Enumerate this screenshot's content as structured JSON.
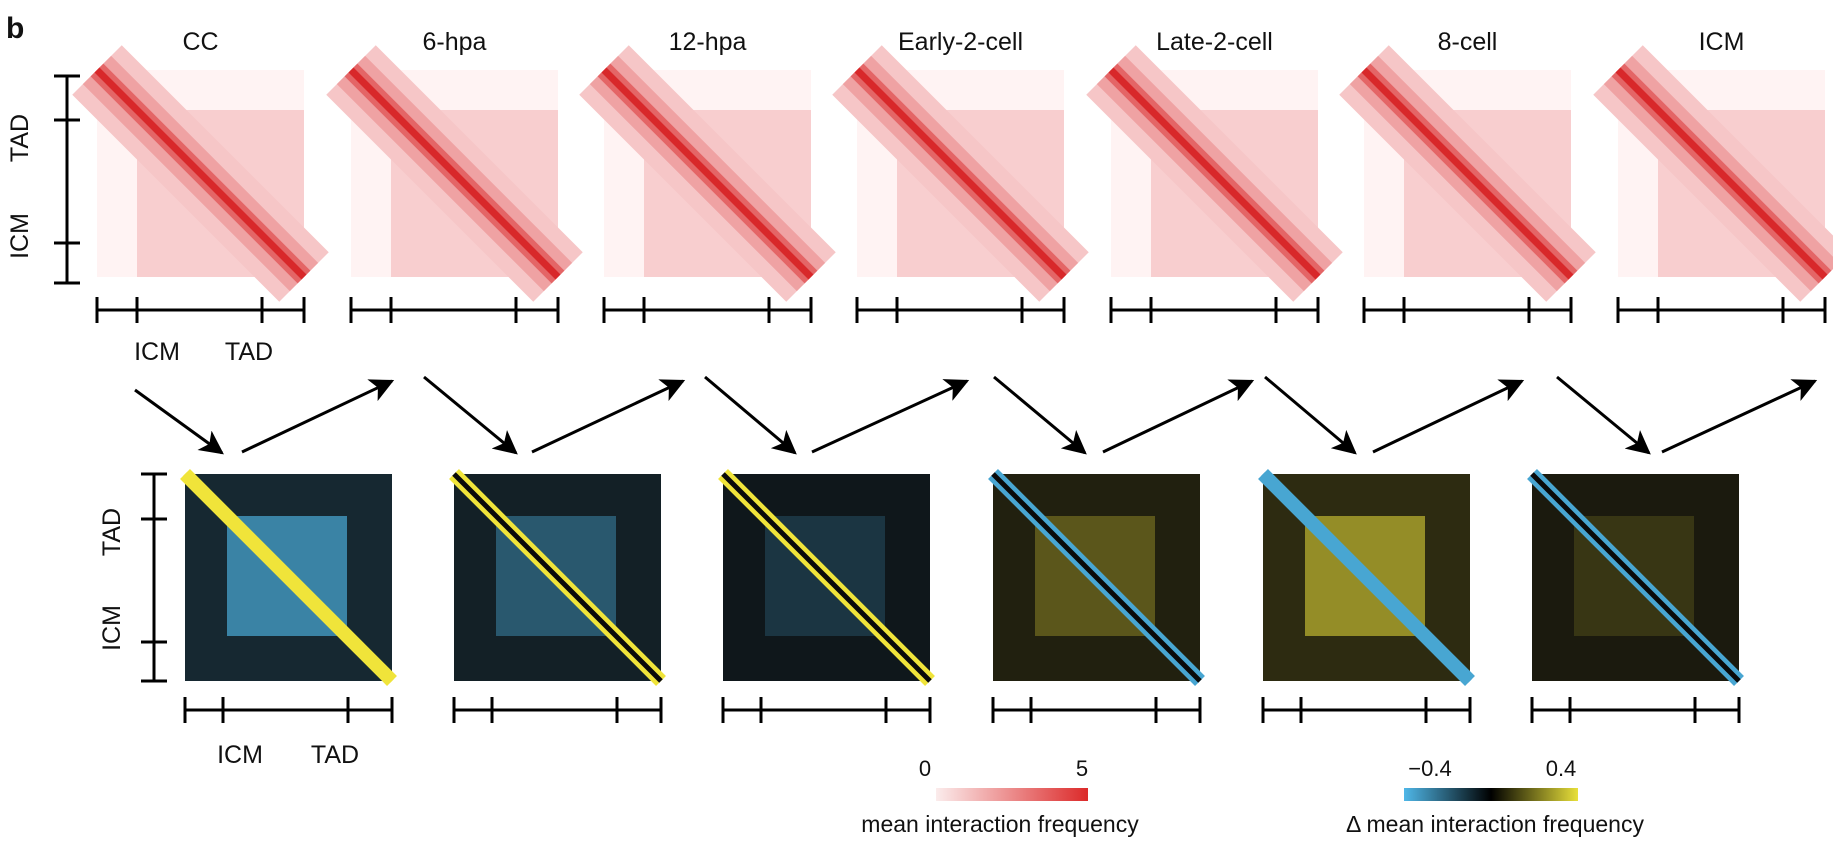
{
  "panel_label": "b",
  "stages": [
    "CC",
    "6-hpa",
    "12-hpa",
    "Early-2-cell",
    "Late-2-cell",
    "8-cell",
    "ICM"
  ],
  "axis_labels": {
    "icm": "ICM",
    "tad": "TAD"
  },
  "legend_mean": {
    "min_label": "0",
    "max_label": "5",
    "title": "mean interaction frequency",
    "colors": [
      "#fbecec",
      "#dc2a2a"
    ]
  },
  "legend_delta": {
    "min_label": "−0.4",
    "max_label": "0.4",
    "title": "Δ mean interaction frequency",
    "colors": [
      "#4fb7e8",
      "#000000",
      "#e8e03a"
    ]
  },
  "colors": {
    "heat_low": "#fff3f3",
    "heat_high": "#d8282a",
    "delta_neg": "#4fb7e8",
    "delta_zero": "#0a0a0a",
    "delta_pos": "#f0e43a"
  }
}
